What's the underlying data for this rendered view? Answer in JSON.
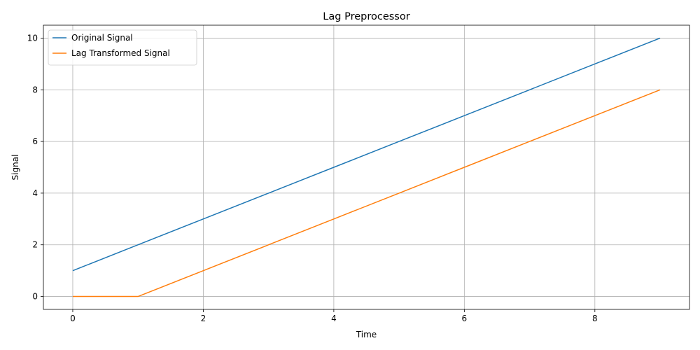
{
  "chart_data": {
    "type": "line",
    "title": "Lag Preprocessor",
    "xlabel": "Time",
    "ylabel": "Signal",
    "x": [
      0,
      1,
      2,
      3,
      4,
      5,
      6,
      7,
      8,
      9
    ],
    "series": [
      {
        "name": "Original Signal",
        "color": "#1f77b4",
        "values": [
          1,
          2,
          3,
          4,
          5,
          6,
          7,
          8,
          9,
          10
        ]
      },
      {
        "name": "Lag Transformed Signal",
        "color": "#ff7f0e",
        "values": [
          0,
          0,
          1,
          2,
          3,
          4,
          5,
          6,
          7,
          8
        ]
      }
    ],
    "xlim": [
      -0.45,
      9.45
    ],
    "ylim": [
      -0.5,
      10.5
    ],
    "xticks": [
      0,
      2,
      4,
      6,
      8
    ],
    "yticks": [
      0,
      2,
      4,
      6,
      8,
      10
    ],
    "grid": true,
    "legend_position": "top-left"
  }
}
